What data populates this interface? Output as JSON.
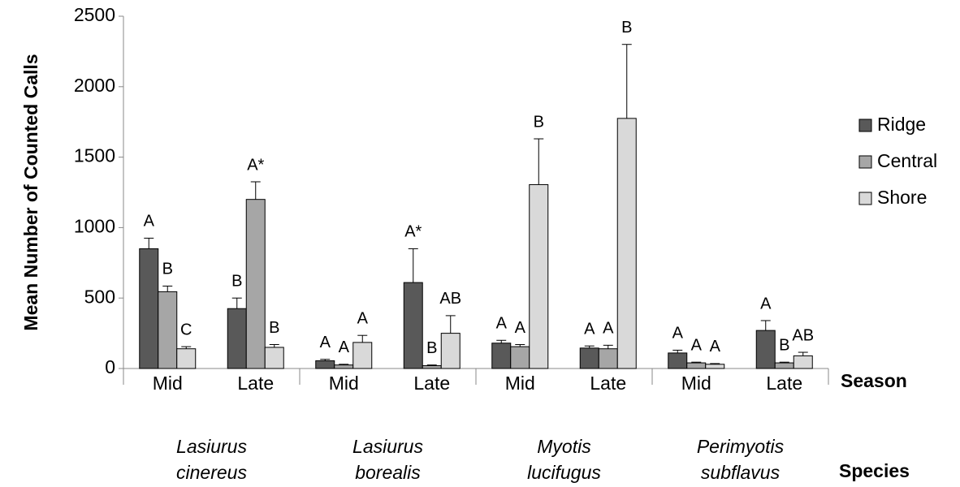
{
  "chart_data": {
    "type": "bar",
    "y_label": "Mean Number of Counted Calls",
    "season_label": "Season",
    "species_label": "Species",
    "categories": [
      "Mid",
      "Late",
      "Mid",
      "Late",
      "Mid",
      "Late",
      "Mid",
      "Late"
    ],
    "groups": [
      "Lasiurus cinereus",
      "Lasiurus borealis",
      "Myotis lucifugus",
      "Perimyotis subflavus"
    ],
    "series": [
      {
        "name": "Ridge",
        "color": "#595959",
        "values": [
          850,
          425,
          55,
          610,
          180,
          145,
          110,
          270
        ],
        "errors": [
          75,
          75,
          10,
          240,
          20,
          15,
          20,
          70
        ],
        "letters": [
          "A",
          "B",
          "A",
          "A*",
          "A",
          "A",
          "A",
          "A"
        ]
      },
      {
        "name": "Central",
        "color": "#a6a6a6",
        "values": [
          545,
          1200,
          25,
          20,
          155,
          140,
          40,
          40
        ],
        "errors": [
          40,
          125,
          5,
          5,
          15,
          25,
          5,
          5
        ],
        "letters": [
          "B",
          "A*",
          "A",
          "B",
          "A",
          "A",
          "A",
          "B"
        ]
      },
      {
        "name": "Shore",
        "color": "#d9d9d9",
        "values": [
          140,
          150,
          185,
          250,
          1305,
          1775,
          30,
          90
        ],
        "errors": [
          15,
          20,
          50,
          125,
          325,
          525,
          5,
          25
        ],
        "letters": [
          "C",
          "B",
          "A",
          "AB",
          "B",
          "B",
          "A",
          "AB"
        ]
      }
    ],
    "ylim": [
      0,
      2500
    ],
    "yticks": [
      0,
      500,
      1000,
      1500,
      2000,
      2500
    ],
    "grid": false
  }
}
